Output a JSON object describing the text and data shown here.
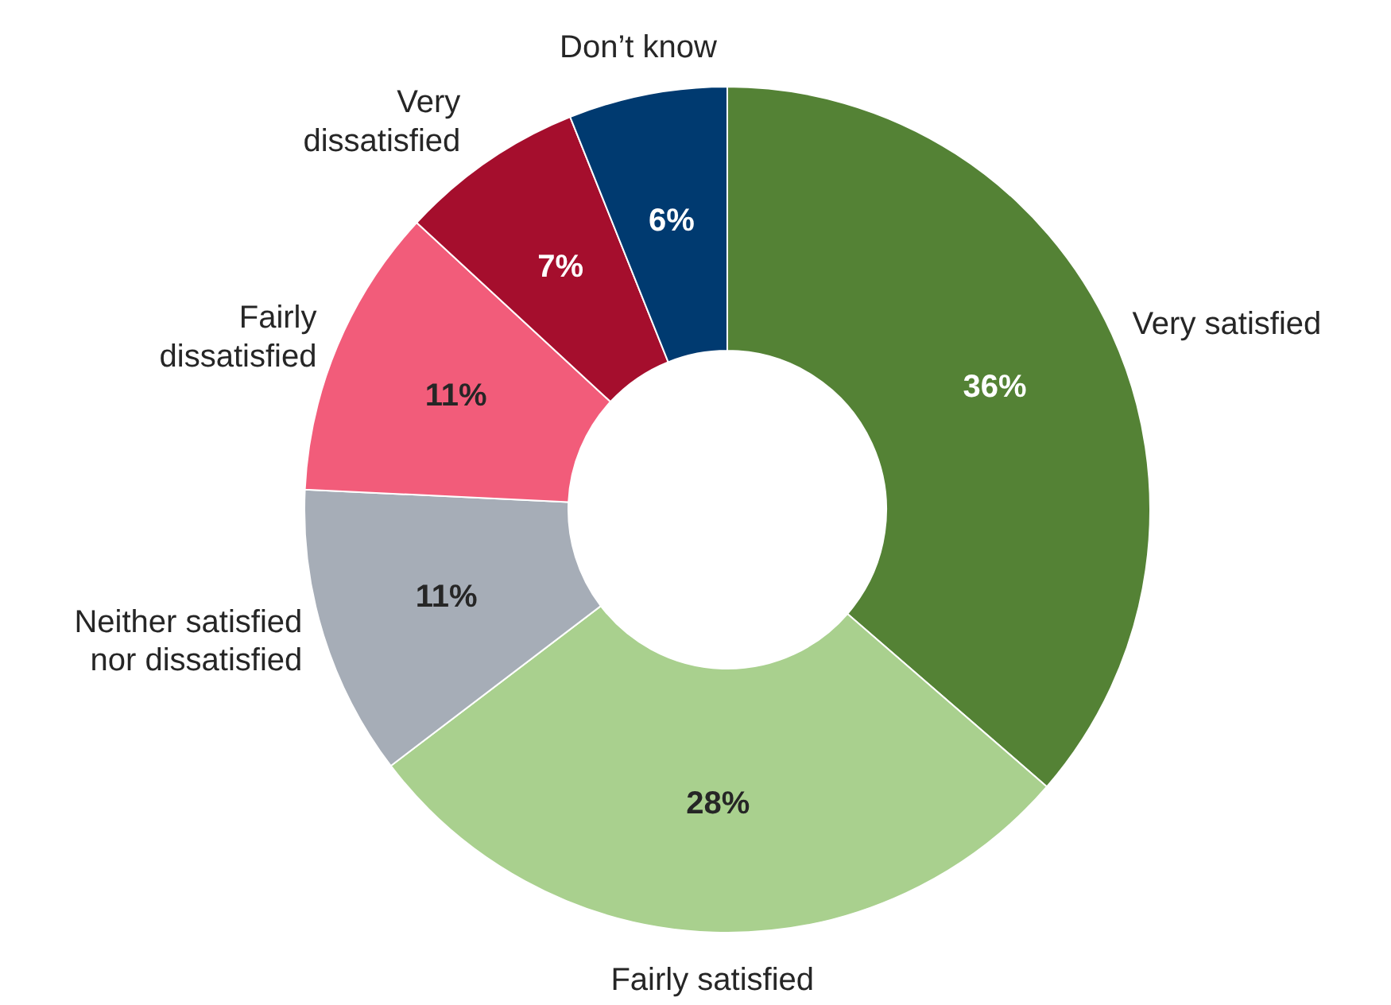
{
  "chart_data": {
    "type": "donut",
    "categories": [
      "Very satisfied",
      "Fairly satisfied",
      "Neither satisfied\nnor dissatisfied",
      "Fairly\ndissatisfied",
      "Very\ndissatisfied",
      "Don’t know"
    ],
    "values": [
      36,
      28,
      11,
      11,
      7,
      6
    ],
    "colors": [
      "#548235",
      "#a9d08e",
      "#a6adb7",
      "#f25c7a",
      "#a50e2d",
      "#003a70"
    ],
    "value_labels": [
      "36%",
      "28%",
      "11%",
      "11%",
      "7%",
      "6%"
    ]
  }
}
